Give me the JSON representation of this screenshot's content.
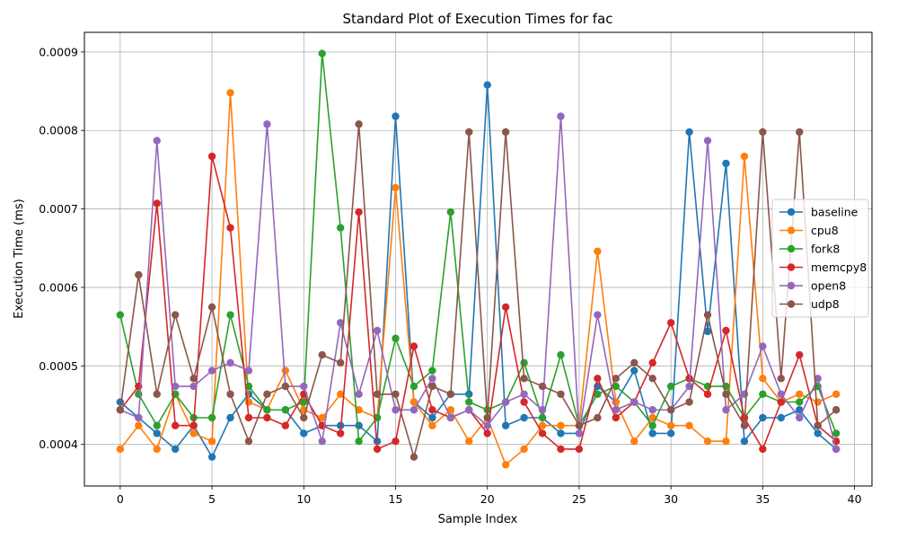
{
  "chart_data": {
    "type": "line",
    "title": "Standard Plot of Execution Times for fac",
    "xlabel": "Sample Index",
    "ylabel": "Execution Time (ms)",
    "xlim": [
      -1.95,
      40.95
    ],
    "ylim": [
      0.000347,
      0.000925
    ],
    "xticks": [
      0,
      5,
      10,
      15,
      20,
      25,
      30,
      35,
      40
    ],
    "xtick_labels": [
      "0",
      "5",
      "10",
      "15",
      "20",
      "25",
      "30",
      "35",
      "40"
    ],
    "yticks": [
      0.0004,
      0.0005,
      0.0006,
      0.0007,
      0.0008,
      0.0009
    ],
    "ytick_labels": [
      "0.0004",
      "0.0005",
      "0.0006",
      "0.0007",
      "0.0008",
      "0.0009"
    ],
    "grid": true,
    "legend_position": "center-right",
    "x": [
      0,
      1,
      2,
      3,
      4,
      5,
      6,
      7,
      8,
      9,
      10,
      11,
      12,
      13,
      14,
      15,
      16,
      17,
      18,
      19,
      20,
      21,
      22,
      23,
      24,
      25,
      26,
      27,
      28,
      29,
      30,
      31,
      32,
      33,
      34,
      35,
      36,
      37,
      38,
      39
    ],
    "series": [
      {
        "name": "baseline",
        "color": "#1f77b4",
        "values": [
          0.000454,
          0.000434,
          0.000414,
          0.000394,
          0.000424,
          0.000384,
          0.000434,
          0.000464,
          0.000444,
          0.000444,
          0.000414,
          0.000424,
          0.000424,
          0.000424,
          0.000404,
          0.000818,
          0.000454,
          0.000434,
          0.000464,
          0.000464,
          0.000858,
          0.000424,
          0.000434,
          0.000434,
          0.000414,
          0.000414,
          0.000474,
          0.000454,
          0.000494,
          0.000414,
          0.000414,
          0.000798,
          0.000544,
          0.000758,
          0.000404,
          0.000434,
          0.000434,
          0.000444,
          0.000414,
          0.000394
        ]
      },
      {
        "name": "cpu8",
        "color": "#ff7f0e",
        "values": [
          0.000394,
          0.000424,
          0.000394,
          0.000464,
          0.000414,
          0.000404,
          0.000848,
          0.000454,
          0.000444,
          0.000494,
          0.000444,
          0.000434,
          0.000464,
          0.000444,
          0.000434,
          0.000727,
          0.000454,
          0.000424,
          0.000444,
          0.000404,
          0.000434,
          0.000374,
          0.000394,
          0.000424,
          0.000424,
          0.000424,
          0.000646,
          0.000454,
          0.000404,
          0.000434,
          0.000424,
          0.000424,
          0.000404,
          0.000404,
          0.000767,
          0.000484,
          0.000454,
          0.000464,
          0.000454,
          0.000464
        ]
      },
      {
        "name": "fork8",
        "color": "#2ca02c",
        "values": [
          0.000565,
          0.000464,
          0.000424,
          0.000464,
          0.000434,
          0.000434,
          0.000565,
          0.000474,
          0.000444,
          0.000444,
          0.000454,
          0.000898,
          0.000676,
          0.000404,
          0.000434,
          0.000535,
          0.000474,
          0.000494,
          0.000696,
          0.000454,
          0.000444,
          0.000454,
          0.000504,
          0.000434,
          0.000514,
          0.000424,
          0.000464,
          0.000474,
          0.000454,
          0.000424,
          0.000474,
          0.000484,
          0.000474,
          0.000474,
          0.000434,
          0.000464,
          0.000454,
          0.000454,
          0.000474,
          0.000414
        ]
      },
      {
        "name": "memcpy8",
        "color": "#d62728",
        "values": [
          0.000444,
          0.000474,
          0.000707,
          0.000424,
          0.000424,
          0.000767,
          0.000676,
          0.000434,
          0.000434,
          0.000424,
          0.000464,
          0.000424,
          0.000414,
          0.000696,
          0.000394,
          0.000404,
          0.000525,
          0.000444,
          0.000434,
          0.000444,
          0.000414,
          0.000575,
          0.000454,
          0.000414,
          0.000394,
          0.000394,
          0.000484,
          0.000434,
          0.000454,
          0.000504,
          0.000555,
          0.000484,
          0.000464,
          0.000545,
          0.000434,
          0.000394,
          0.000454,
          0.000514,
          0.000424,
          0.000404
        ]
      },
      {
        "name": "open8",
        "color": "#9467bd",
        "values": [
          0.000444,
          0.000434,
          0.000787,
          0.000474,
          0.000474,
          0.000494,
          0.000504,
          0.000494,
          0.000808,
          0.000474,
          0.000474,
          0.000404,
          0.000555,
          0.000464,
          0.000545,
          0.000444,
          0.000444,
          0.000484,
          0.000434,
          0.000444,
          0.000424,
          0.000454,
          0.000464,
          0.000444,
          0.000818,
          0.000414,
          0.000565,
          0.000444,
          0.000454,
          0.000444,
          0.000444,
          0.000474,
          0.000787,
          0.000444,
          0.000464,
          0.000525,
          0.000464,
          0.000434,
          0.000484,
          0.000394
        ]
      },
      {
        "name": "udp8",
        "color": "#8c564b",
        "values": [
          0.000444,
          0.000616,
          0.000464,
          0.000565,
          0.000484,
          0.000575,
          0.000464,
          0.000404,
          0.000464,
          0.000474,
          0.000434,
          0.000514,
          0.000504,
          0.000808,
          0.000464,
          0.000464,
          0.000384,
          0.000474,
          0.000464,
          0.000798,
          0.000434,
          0.000798,
          0.000484,
          0.000474,
          0.000464,
          0.000424,
          0.000434,
          0.000484,
          0.000504,
          0.000484,
          0.000444,
          0.000454,
          0.000565,
          0.000464,
          0.000424,
          0.000798,
          0.000484,
          0.000798,
          0.000424,
          0.000444
        ]
      }
    ]
  }
}
